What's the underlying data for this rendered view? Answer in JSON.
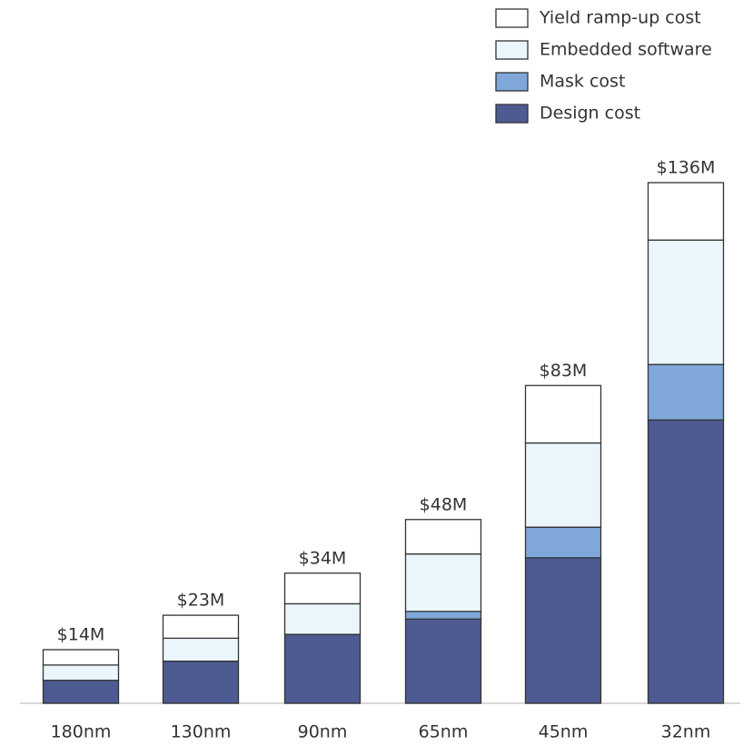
{
  "chart_data": {
    "type": "stacked-bar",
    "categories": [
      "180nm",
      "130nm",
      "90nm",
      "65nm",
      "45nm",
      "32nm"
    ],
    "series": [
      {
        "name": "Design cost",
        "color": "#4d5b92",
        "values": [
          6,
          11,
          18,
          22,
          38,
          74
        ]
      },
      {
        "name": "Mask cost",
        "color": "#7fa7d9",
        "values": [
          0,
          0,
          0,
          2,
          8,
          14.5
        ]
      },
      {
        "name": "Embedded software",
        "color": "#eaf6fb",
        "values": [
          4,
          6,
          8,
          15,
          22,
          32.5
        ]
      },
      {
        "name": "Yield ramp-up cost",
        "color": "#ffffff",
        "values": [
          4,
          6,
          8,
          9,
          15,
          15
        ]
      }
    ],
    "totals": {
      "values": [
        14,
        23,
        34,
        48,
        83,
        136
      ],
      "value_labels": [
        "$14M",
        "$23M",
        "$34M",
        "$48M",
        "$83M",
        "$136M"
      ]
    }
  }
}
